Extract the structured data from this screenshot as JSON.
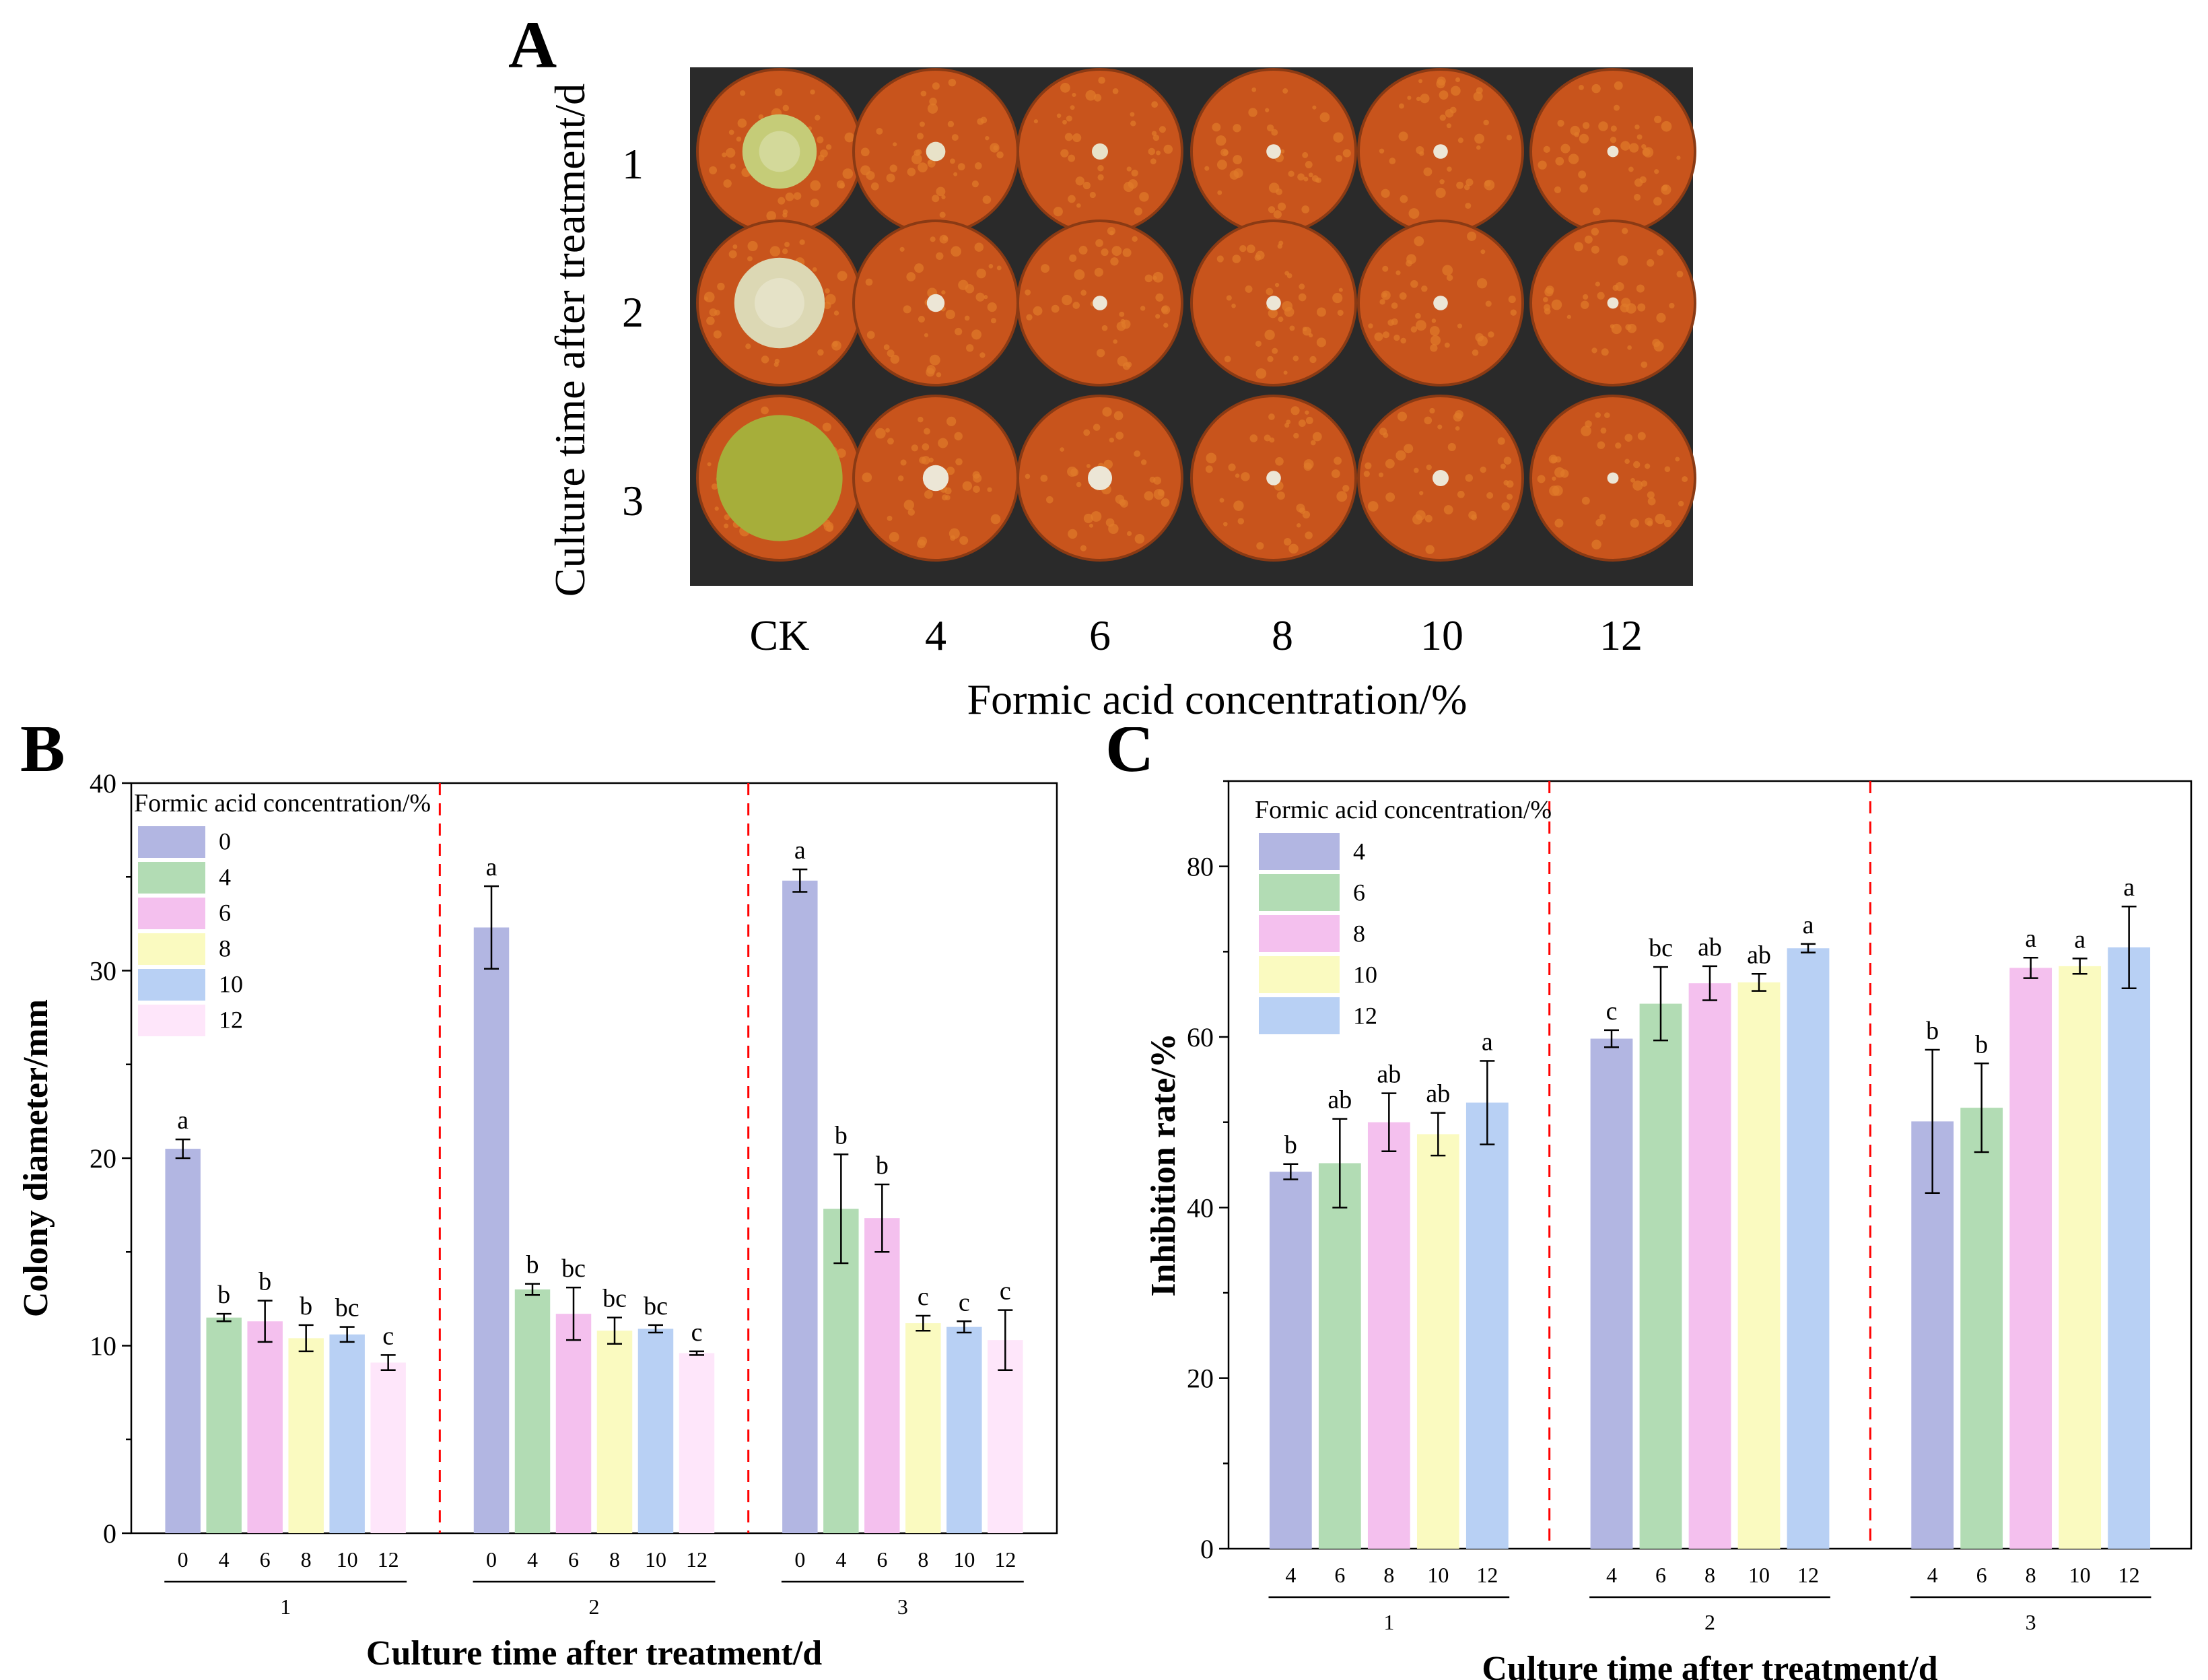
{
  "panel_a": {
    "letter": "A",
    "y_title": "Culture time after treatment/d",
    "row_labels": [
      "1",
      "2",
      "3"
    ],
    "col_labels": [
      "CK",
      "4",
      "6",
      "8",
      "10",
      "12"
    ],
    "x_title": "Formic acid concentration/%",
    "photo_colors": {
      "background": "#2a2a2a",
      "dish": "#c8541c",
      "speckle": "#e07a2a",
      "rim": "#8a3a14"
    },
    "colony_colors": [
      [
        "#c5cc78",
        "#e8e2c8",
        "#e8e2c8",
        "#ece6d6",
        "#ece6d6",
        "#ece6d6"
      ],
      [
        "#dcd8b4",
        "#ece6d6",
        "#ece6d6",
        "#ece6d6",
        "#ece6d6",
        "#ece6d6"
      ],
      [
        "#a6ae3a",
        "#ece6d6",
        "#ece6d6",
        "#ece6d6",
        "#ece6d6",
        "#ece6d6"
      ]
    ],
    "colony_relative_size": [
      [
        0.46,
        0.12,
        0.1,
        0.09,
        0.09,
        0.07
      ],
      [
        0.56,
        0.11,
        0.09,
        0.09,
        0.09,
        0.07
      ],
      [
        0.78,
        0.16,
        0.15,
        0.09,
        0.1,
        0.07
      ]
    ]
  },
  "chart_data": [
    {
      "panel_letter": "B",
      "type": "bar",
      "ylabel": "Colony diameter/mm",
      "xlabel": "Culture time after treatment/d",
      "ylim": [
        0,
        40
      ],
      "yticks": [
        0,
        10,
        20,
        30,
        40
      ],
      "groups": [
        "1",
        "2",
        "3"
      ],
      "legend_title": "Formic acid concentration/%",
      "legend_position": "top-left",
      "series": [
        {
          "name": "0",
          "color": "#b2b6e2",
          "values": [
            20.5,
            32.3,
            34.8
          ],
          "errors": [
            0.5,
            2.2,
            0.6
          ],
          "letters": [
            "a",
            "a",
            "a"
          ]
        },
        {
          "name": "4",
          "color": "#b2dcb4",
          "values": [
            11.5,
            13.0,
            17.3
          ],
          "errors": [
            0.2,
            0.3,
            2.9
          ],
          "letters": [
            "b",
            "b",
            "b"
          ]
        },
        {
          "name": "6",
          "color": "#f4c0ee",
          "values": [
            11.3,
            11.7,
            16.8
          ],
          "errors": [
            1.1,
            1.4,
            1.8
          ],
          "letters": [
            "b",
            "bc",
            "b"
          ]
        },
        {
          "name": "8",
          "color": "#fafac0",
          "values": [
            10.4,
            10.8,
            11.2
          ],
          "errors": [
            0.7,
            0.7,
            0.4
          ],
          "letters": [
            "b",
            "bc",
            "c"
          ]
        },
        {
          "name": "10",
          "color": "#b8d0f4",
          "values": [
            10.6,
            10.9,
            11.0
          ],
          "errors": [
            0.4,
            0.2,
            0.3
          ],
          "letters": [
            "bc",
            "bc",
            "c"
          ]
        },
        {
          "name": "12",
          "color": "#fee6fa",
          "values": [
            9.1,
            9.6,
            10.3
          ],
          "errors": [
            0.4,
            0.1,
            1.6
          ],
          "letters": [
            "c",
            "c",
            "c"
          ]
        }
      ]
    },
    {
      "panel_letter": "C",
      "type": "bar",
      "ylabel": "Inhibition rate/%",
      "xlabel": "Culture time after treatment/d",
      "ylim": [
        0,
        90
      ],
      "yticks": [
        0,
        20,
        40,
        60,
        80
      ],
      "groups": [
        "1",
        "2",
        "3"
      ],
      "legend_title": "Formic acid concentration/%",
      "legend_position": "top-left",
      "series": [
        {
          "name": "4",
          "color": "#b2b6e2",
          "values": [
            44.2,
            59.8,
            50.1
          ],
          "errors": [
            0.9,
            1.0,
            8.4
          ],
          "letters": [
            "b",
            "c",
            "b"
          ]
        },
        {
          "name": "6",
          "color": "#b2dcb4",
          "values": [
            45.2,
            63.9,
            51.7
          ],
          "errors": [
            5.2,
            4.3,
            5.2
          ],
          "letters": [
            "ab",
            "bc",
            "b"
          ]
        },
        {
          "name": "8",
          "color": "#f4c0ee",
          "values": [
            50.0,
            66.3,
            68.1
          ],
          "errors": [
            3.4,
            2.0,
            1.2
          ],
          "letters": [
            "ab",
            "ab",
            "a"
          ]
        },
        {
          "name": "10",
          "color": "#fafac0",
          "values": [
            48.6,
            66.4,
            68.3
          ],
          "errors": [
            2.5,
            1.0,
            0.9
          ],
          "letters": [
            "ab",
            "ab",
            "a"
          ]
        },
        {
          "name": "12",
          "color": "#b8d0f4",
          "values": [
            52.3,
            70.4,
            70.5
          ],
          "errors": [
            4.9,
            0.5,
            4.8
          ],
          "letters": [
            "a",
            "a",
            "a"
          ]
        }
      ]
    }
  ]
}
